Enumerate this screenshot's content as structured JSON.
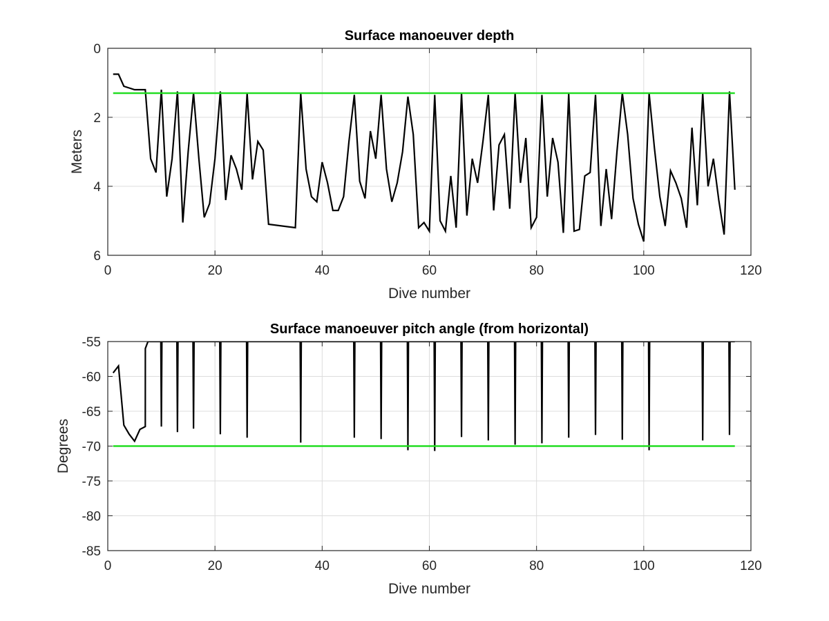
{
  "colors": {
    "series": "#000000",
    "reference": "#22dd22",
    "grid": "#dcdcdc",
    "axis": "#262626"
  },
  "chart_data": [
    {
      "type": "line",
      "title": "Surface manoeuver depth",
      "xlabel": "Dive number",
      "ylabel": "Meters",
      "xlim": [
        0,
        120
      ],
      "ylim": [
        0,
        6
      ],
      "y_reversed": true,
      "grid": true,
      "xticks": [
        "0",
        "20",
        "40",
        "60",
        "80",
        "100",
        "120"
      ],
      "yticks": [
        "0",
        "2",
        "4",
        "6"
      ],
      "series": [
        {
          "x": [
            1,
            2,
            3,
            4,
            5,
            6,
            7,
            8,
            9,
            10,
            11,
            12,
            13,
            14,
            15,
            16,
            17,
            18,
            19,
            20,
            21,
            22,
            23,
            24,
            25,
            26,
            27,
            28,
            29,
            30,
            35,
            36,
            37,
            38,
            39,
            40,
            41,
            42,
            43,
            44,
            45,
            46,
            47,
            48,
            49,
            50,
            51,
            52,
            53,
            54,
            55,
            56,
            57,
            58,
            59,
            60,
            61,
            62,
            63,
            64,
            65,
            66,
            67,
            68,
            69,
            70,
            71,
            72,
            73,
            74,
            75,
            76,
            77,
            78,
            79,
            80,
            81,
            82,
            83,
            84,
            85,
            86,
            87,
            88,
            89,
            90,
            91,
            92,
            93,
            94,
            95,
            96,
            97,
            98,
            99,
            100,
            101,
            102,
            103,
            104,
            105,
            106,
            107,
            108,
            109,
            110,
            111,
            112,
            113,
            114,
            115,
            116,
            117
          ],
          "values": [
            0.75,
            0.75,
            1.1,
            1.15,
            1.2,
            1.2,
            1.2,
            3.2,
            3.6,
            1.2,
            4.3,
            3.2,
            1.25,
            5.05,
            3.0,
            1.3,
            3.2,
            4.9,
            4.5,
            3.2,
            1.25,
            4.4,
            3.1,
            3.5,
            4.1,
            1.3,
            3.8,
            2.7,
            2.95,
            5.1,
            5.2,
            1.3,
            3.5,
            4.3,
            4.45,
            3.3,
            3.9,
            4.7,
            4.7,
            4.3,
            2.7,
            1.35,
            3.85,
            4.35,
            2.4,
            3.2,
            1.35,
            3.5,
            4.45,
            3.9,
            3.0,
            1.4,
            2.5,
            5.2,
            5.05,
            5.3,
            1.35,
            5.0,
            5.3,
            3.7,
            5.2,
            1.3,
            4.85,
            3.2,
            3.9,
            2.7,
            1.35,
            4.7,
            2.8,
            2.5,
            4.65,
            1.3,
            3.9,
            2.6,
            5.2,
            4.9,
            1.35,
            4.3,
            2.6,
            3.3,
            5.35,
            1.3,
            5.3,
            5.25,
            3.7,
            3.6,
            1.35,
            5.15,
            3.5,
            4.95,
            3.0,
            1.3,
            2.5,
            4.35,
            5.1,
            5.6,
            1.3,
            2.9,
            4.3,
            5.15,
            3.55,
            3.9,
            4.35,
            5.2,
            2.3,
            4.55,
            1.3,
            4.0,
            3.2,
            4.4,
            5.4,
            1.25,
            4.1
          ]
        },
        {
          "x": [
            1,
            117
          ],
          "values": [
            1.3,
            1.3
          ]
        }
      ]
    },
    {
      "type": "line",
      "title": "Surface manoeuver pitch angle (from horizontal)",
      "xlabel": "Dive number",
      "ylabel": "Degrees",
      "xlim": [
        0,
        120
      ],
      "ylim": [
        -85,
        -55
      ],
      "grid": true,
      "xticks": [
        "0",
        "20",
        "40",
        "60",
        "80",
        "100",
        "120"
      ],
      "yticks": [
        "-55",
        "-60",
        "-65",
        "-70",
        "-75",
        "-80",
        "-85"
      ],
      "series": [
        {
          "x": [
            1,
            2,
            3,
            4,
            5,
            6,
            7,
            7.01,
            7.5,
            9.9,
            10,
            10.1,
            12.9,
            13,
            13.1,
            15.9,
            16,
            16.1,
            20.9,
            21,
            21.1,
            25.9,
            26,
            26.1,
            35.9,
            36,
            36.1,
            45.9,
            46,
            46.1,
            50.9,
            51,
            51.1,
            55.9,
            56,
            56.1,
            60.9,
            61,
            61.1,
            65.9,
            66,
            66.1,
            70.9,
            71,
            71.1,
            75.9,
            76,
            76.1,
            80.9,
            81,
            81.1,
            85.9,
            86,
            86.1,
            90.9,
            91,
            91.1,
            95.9,
            96,
            96.1,
            100.9,
            101,
            101.1,
            110.9,
            111,
            111.1,
            115.9,
            116,
            116.1,
            117
          ],
          "values": [
            -59.5,
            -58.5,
            -67.0,
            -68.3,
            -69.3,
            -67.6,
            -67.2,
            -56.0,
            -55.0,
            -55.0,
            -67.2,
            -55.0,
            -55.0,
            -68.0,
            -55.0,
            -55.0,
            -67.5,
            -55.0,
            -55.0,
            -68.3,
            -55.0,
            -55.0,
            -68.8,
            -55.0,
            -55.0,
            -69.5,
            -55.0,
            -55.0,
            -68.8,
            -55.0,
            -55.0,
            -69.0,
            -55.0,
            -55.0,
            -70.6,
            -55.0,
            -55.0,
            -70.7,
            -55.0,
            -55.0,
            -68.7,
            -55.0,
            -55.0,
            -69.2,
            -55.0,
            -55.0,
            -69.8,
            -55.0,
            -55.0,
            -69.6,
            -55.0,
            -55.0,
            -68.8,
            -55.0,
            -55.0,
            -68.4,
            -55.0,
            -55.0,
            -69.1,
            -55.0,
            -55.0,
            -70.6,
            -55.0,
            -55.0,
            -69.2,
            -55.0,
            -55.0,
            -68.4,
            -55.0,
            -55.0
          ]
        },
        {
          "x": [
            1,
            117
          ],
          "values": [
            -70,
            -70
          ]
        }
      ]
    }
  ]
}
